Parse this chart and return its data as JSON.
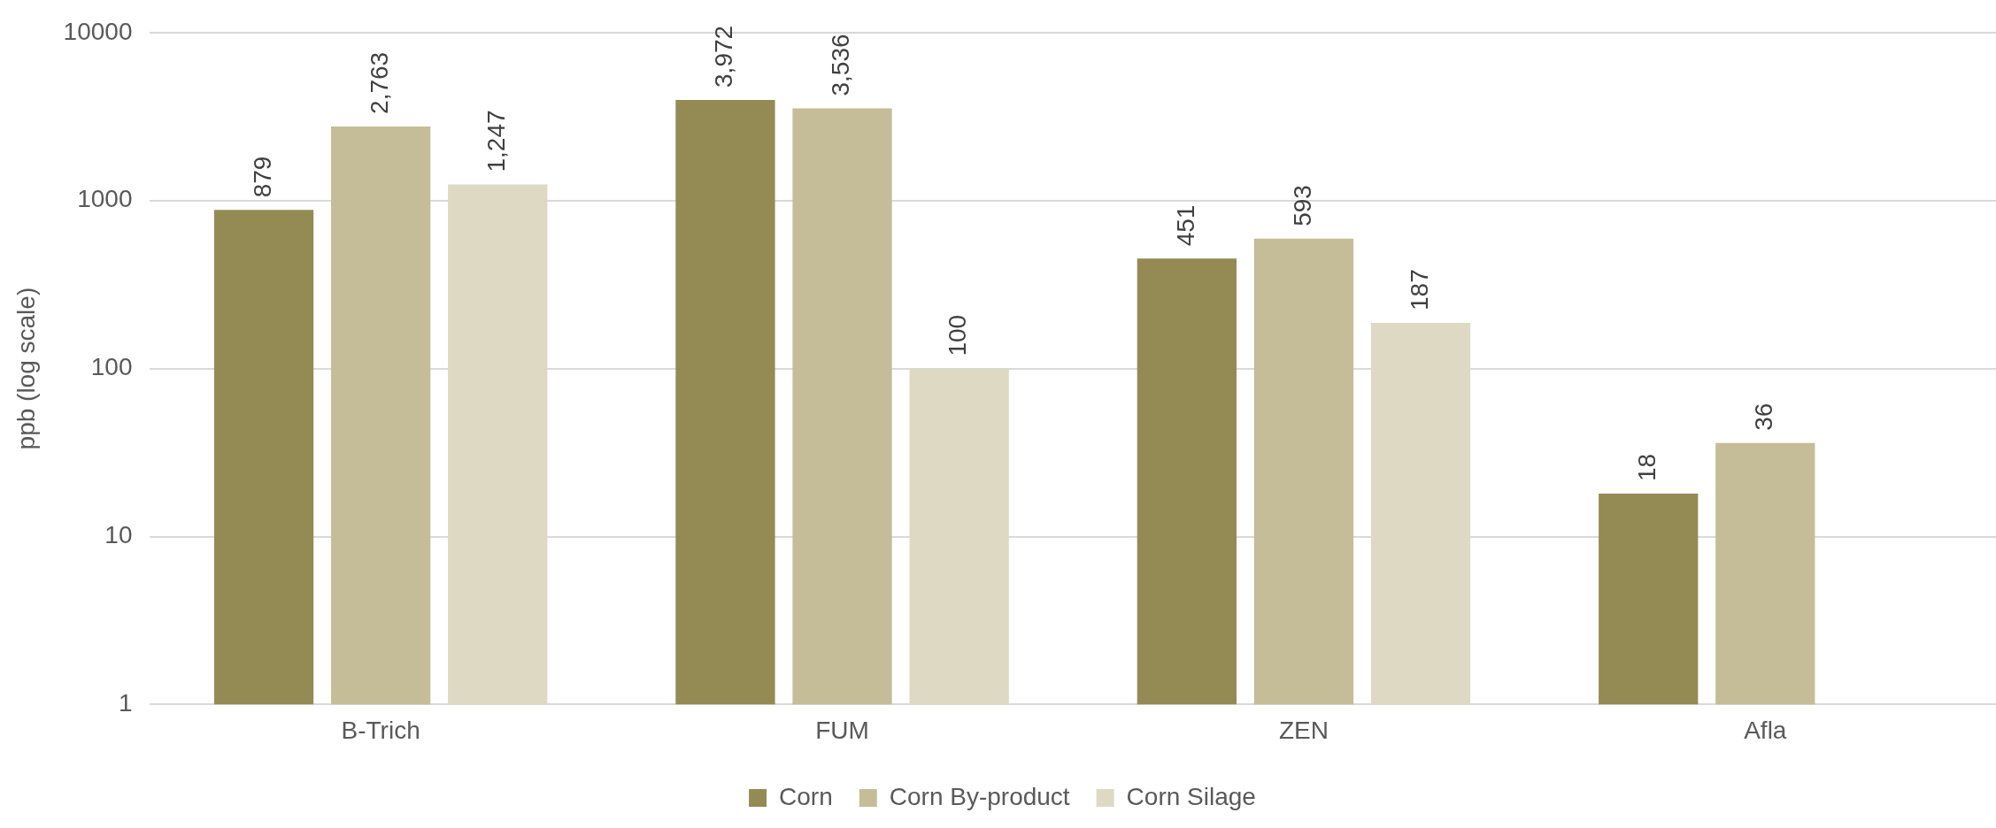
{
  "chart_data": {
    "type": "bar",
    "ylabel": "ppb (log scale)",
    "categories": [
      "B-Trich",
      "FUM",
      "ZEN",
      "Afla"
    ],
    "series": [
      {
        "name": "Corn",
        "color": "#948a54",
        "values": [
          879,
          3972,
          451,
          18
        ],
        "value_labels": [
          "879",
          "3,972",
          "451",
          "18"
        ]
      },
      {
        "name": "Corn By-product",
        "color": "#c4bd97",
        "values": [
          2763,
          3536,
          593,
          36
        ],
        "value_labels": [
          "2,763",
          "3,536",
          "593",
          "36"
        ]
      },
      {
        "name": "Corn Silage",
        "color": "#ddd9c3",
        "values": [
          1247,
          100,
          187,
          null
        ],
        "value_labels": [
          "1,247",
          "100",
          "187",
          null
        ]
      }
    ],
    "log": "y",
    "ylim": [
      1,
      10000
    ],
    "yticks": [
      1,
      10,
      100,
      1000,
      10000
    ],
    "grid": "y",
    "legend": "bottom"
  }
}
